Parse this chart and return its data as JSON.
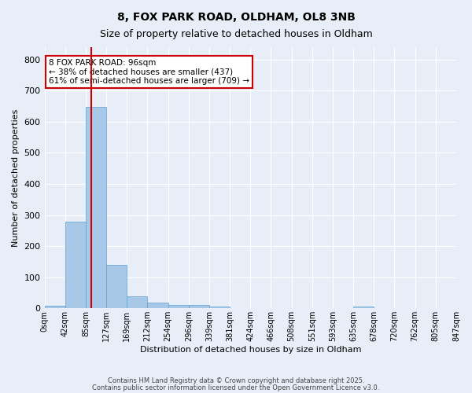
{
  "title1": "8, FOX PARK ROAD, OLDHAM, OL8 3NB",
  "title2": "Size of property relative to detached houses in Oldham",
  "xlabel": "Distribution of detached houses by size in Oldham",
  "ylabel": "Number of detached properties",
  "bar_values": [
    8,
    278,
    648,
    140,
    38,
    18,
    12,
    10,
    5,
    0,
    0,
    0,
    0,
    0,
    0,
    5,
    0,
    0,
    0,
    0
  ],
  "bin_labels": [
    "0sqm",
    "42sqm",
    "85sqm",
    "127sqm",
    "169sqm",
    "212sqm",
    "254sqm",
    "296sqm",
    "339sqm",
    "381sqm",
    "424sqm",
    "466sqm",
    "508sqm",
    "551sqm",
    "593sqm",
    "635sqm",
    "678sqm",
    "720sqm",
    "762sqm",
    "805sqm",
    "847sqm"
  ],
  "bar_color": "#a8c8e8",
  "bar_edge_color": "#5a9fd4",
  "red_line_x": 2.26,
  "annotation_text": "8 FOX PARK ROAD: 96sqm\n← 38% of detached houses are smaller (437)\n61% of semi-detached houses are larger (709) →",
  "annotation_box_color": "#ffffff",
  "annotation_box_edge": "#cc0000",
  "ylim": [
    0,
    840
  ],
  "yticks": [
    0,
    100,
    200,
    300,
    400,
    500,
    600,
    700,
    800
  ],
  "bg_color": "#e8eef8",
  "plot_bg_color": "#e8eef8",
  "grid_color": "#ffffff",
  "footer1": "Contains HM Land Registry data © Crown copyright and database right 2025.",
  "footer2": "Contains public sector information licensed under the Open Government Licence v3.0."
}
